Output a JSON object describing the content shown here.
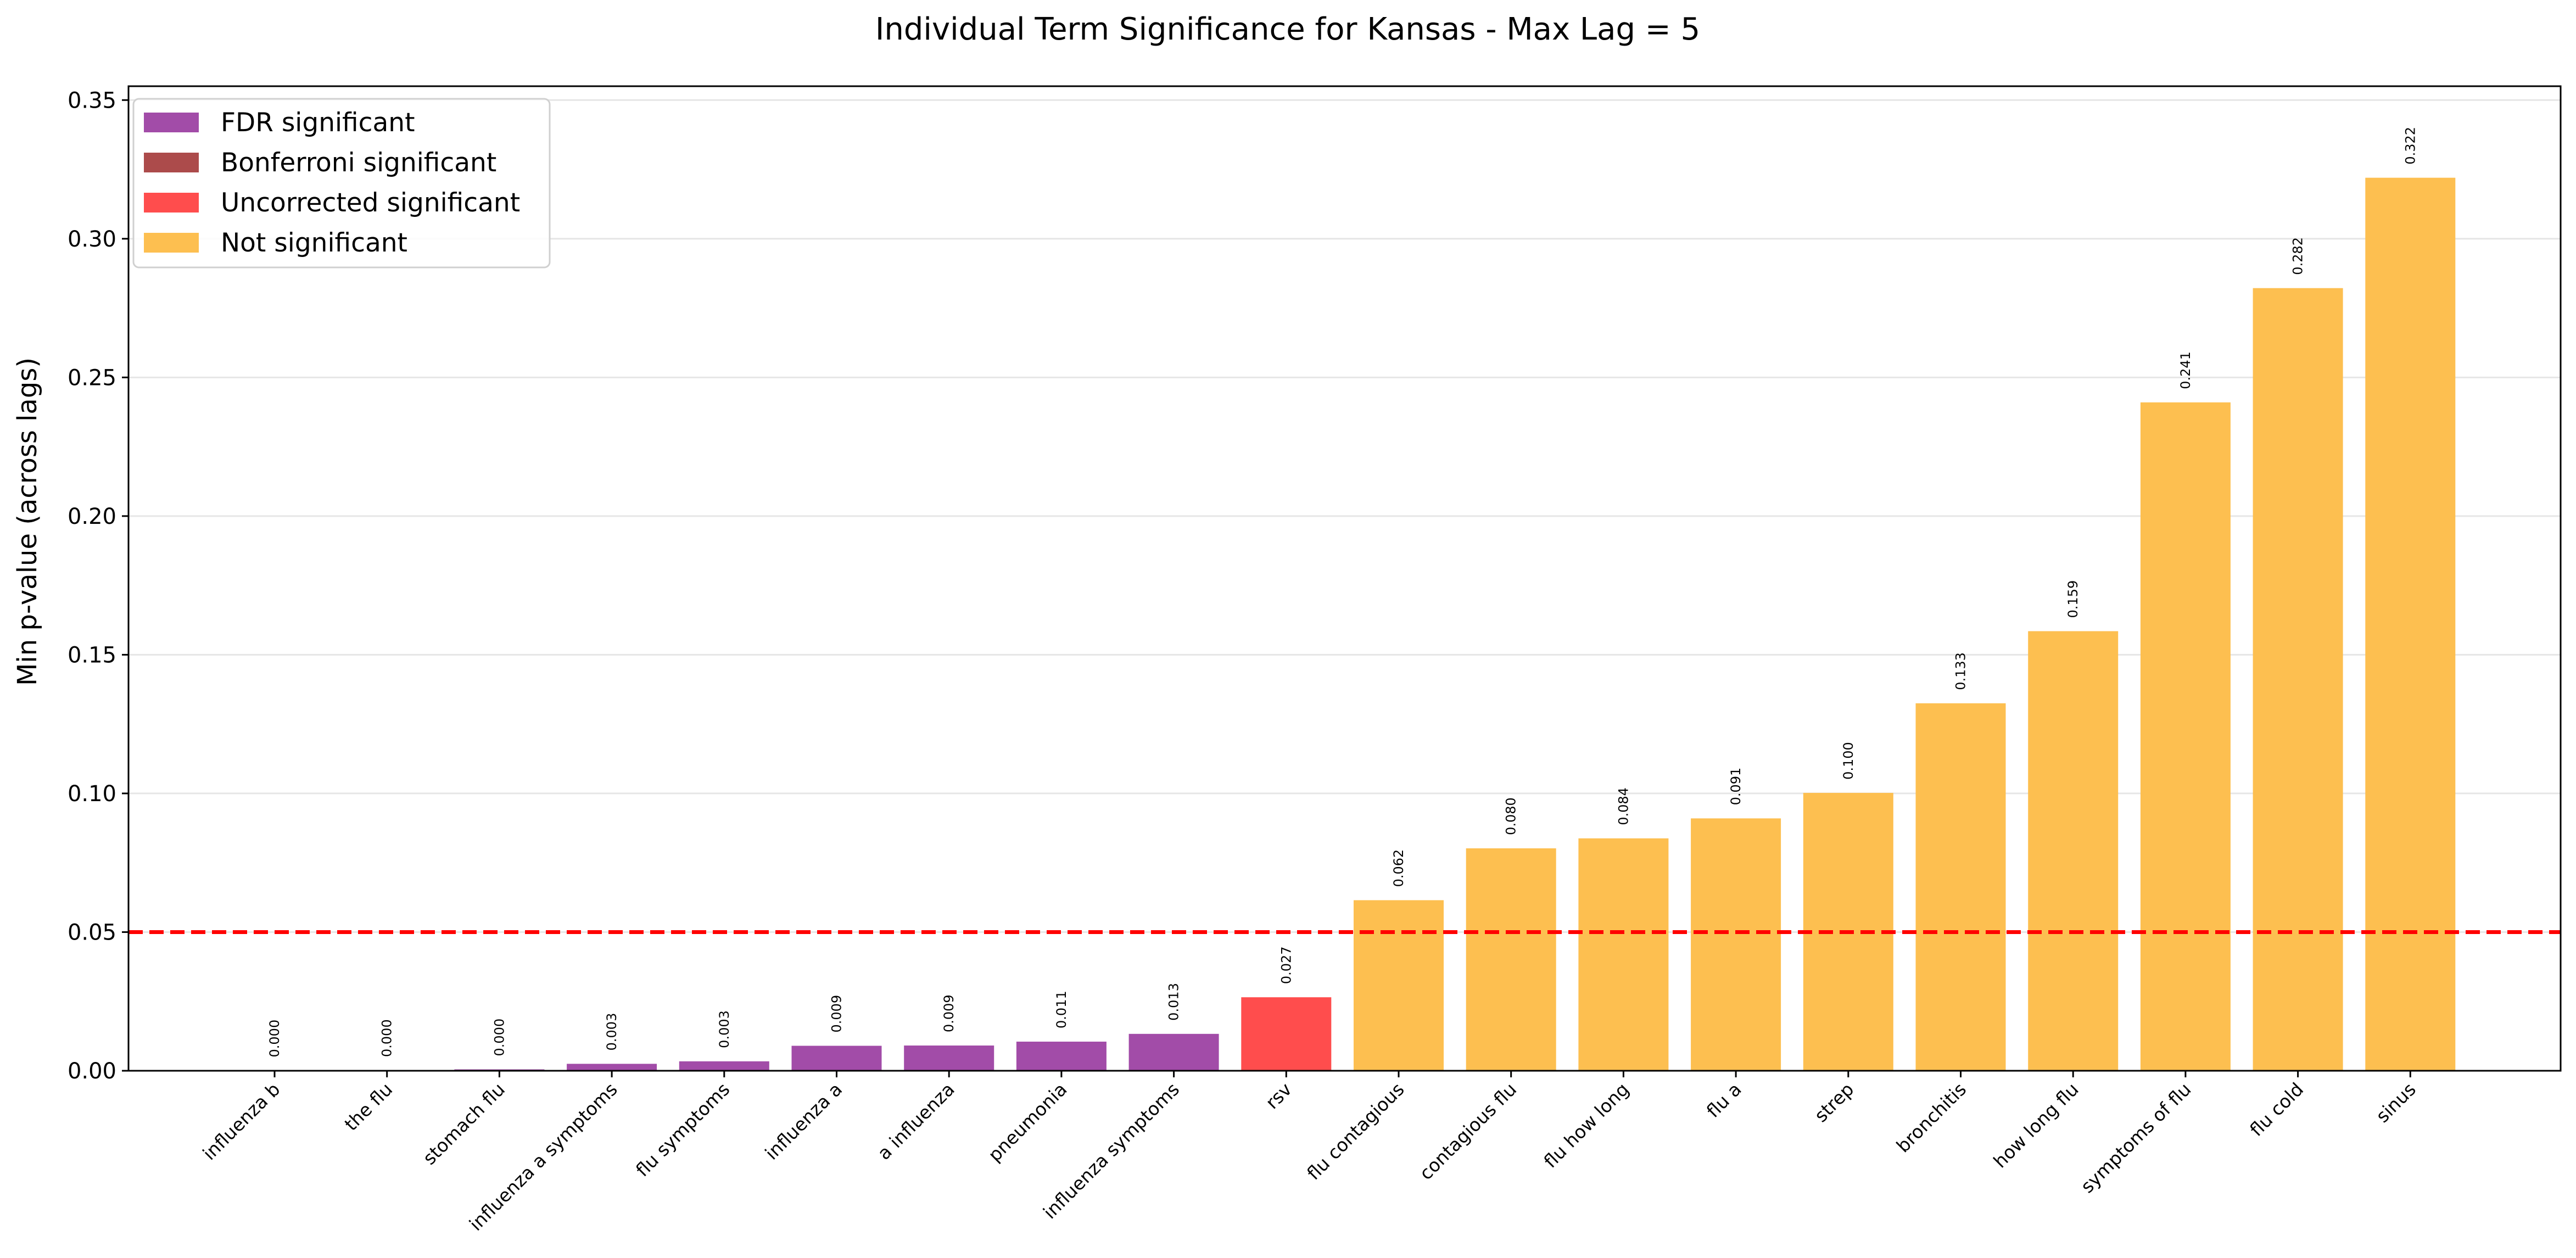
{
  "chart_data": {
    "type": "bar",
    "title": "Individual Term Significance for Kansas - Max Lag = 5",
    "xlabel": "",
    "ylabel": "Min p-value (across lags)",
    "ylim": [
      0,
      0.355
    ],
    "yticks": [
      "0.00",
      "0.05",
      "0.10",
      "0.15",
      "0.20",
      "0.25",
      "0.30",
      "0.35"
    ],
    "ytick_values": [
      0,
      0.05,
      0.1,
      0.15,
      0.2,
      0.25,
      0.3,
      0.35
    ],
    "grid": "horizontal",
    "threshold": {
      "value": 0.05,
      "color": "#ff0000",
      "style": "dashed"
    },
    "legend_placement": "top-left",
    "legend": [
      {
        "label": "FDR significant",
        "color": "#a24ca8"
      },
      {
        "label": "Bonferroni significant",
        "color": "#ac4b4b"
      },
      {
        "label": "Uncorrected significant",
        "color": "#ff4d4d"
      },
      {
        "label": "Not significant",
        "color": "#fdbf50"
      }
    ],
    "categories": [
      "influenza b",
      "the flu",
      "stomach flu",
      "influenza a symptoms",
      "flu symptoms",
      "influenza a",
      "a influenza",
      "pneumonia",
      "influenza symptoms",
      "rsv",
      "flu contagious",
      "contagious flu",
      "flu how long",
      "flu a",
      "strep",
      "bronchitis",
      "how long flu",
      "symptoms of flu",
      "flu cold",
      "sinus"
    ],
    "values": [
      0.0001,
      0.0002,
      0.0005,
      0.0025,
      0.0034,
      0.009,
      0.0091,
      0.0105,
      0.0133,
      0.0265,
      0.0615,
      0.0802,
      0.0838,
      0.091,
      0.1002,
      0.1325,
      0.1585,
      0.241,
      0.2822,
      0.322
    ],
    "value_labels": [
      "0.000",
      "0.000",
      "0.000",
      "0.003",
      "0.003",
      "0.009",
      "0.009",
      "0.011",
      "0.013",
      "0.027",
      "0.062",
      "0.080",
      "0.084",
      "0.091",
      "0.100",
      "0.133",
      "0.159",
      "0.241",
      "0.282",
      "0.322"
    ],
    "significance": [
      "FDR significant",
      "FDR significant",
      "FDR significant",
      "FDR significant",
      "FDR significant",
      "FDR significant",
      "FDR significant",
      "FDR significant",
      "FDR significant",
      "Uncorrected significant",
      "Not significant",
      "Not significant",
      "Not significant",
      "Not significant",
      "Not significant",
      "Not significant",
      "Not significant",
      "Not significant",
      "Not significant",
      "Not significant"
    ]
  }
}
